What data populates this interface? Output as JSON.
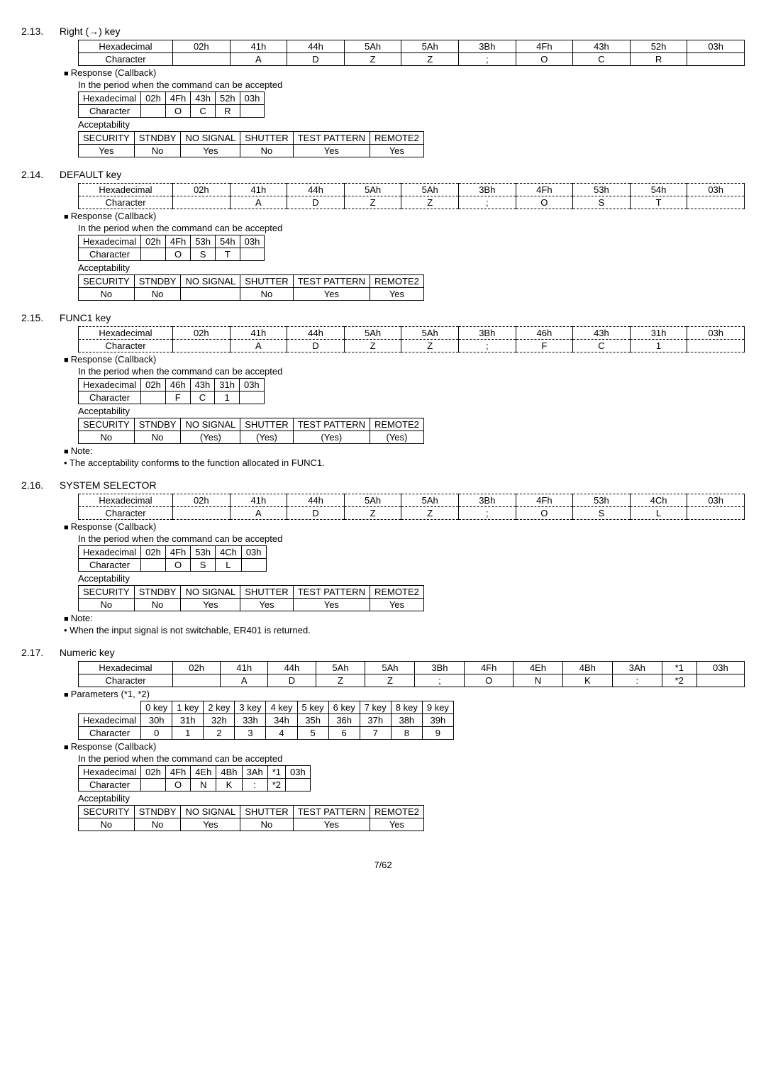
{
  "page_number": "7/62",
  "sections": {
    "s213": {
      "num": "2.13.",
      "title": "Right (→) key",
      "main": {
        "rowLabels": [
          "Hexadecimal",
          "Character"
        ],
        "hex": [
          "02h",
          "41h",
          "44h",
          "5Ah",
          "5Ah",
          "3Bh",
          "4Fh",
          "43h",
          "52h",
          "03h"
        ],
        "chr": [
          "",
          "A",
          "D",
          "Z",
          "Z",
          ";",
          "O",
          "C",
          "R",
          ""
        ]
      },
      "resp_label": "Response (Callback)",
      "resp_sub": "In the period when the command can be accepted",
      "resp": {
        "rowLabels": [
          "Hexadecimal",
          "Character"
        ],
        "hex": [
          "02h",
          "4Fh",
          "43h",
          "52h",
          "03h"
        ],
        "chr": [
          "",
          "O",
          "C",
          "R",
          ""
        ]
      },
      "acc_label": "Acceptability",
      "acc": {
        "hdr": [
          "SECURITY",
          "STNDBY",
          "NO SIGNAL",
          "SHUTTER",
          "TEST PATTERN",
          "REMOTE2"
        ],
        "val": [
          "Yes",
          "No",
          "Yes",
          "No",
          "Yes",
          "Yes"
        ]
      }
    },
    "s214": {
      "num": "2.14.",
      "title": "DEFAULT key",
      "main": {
        "rowLabels": [
          "Hexadecimal",
          "Character"
        ],
        "hex": [
          "02h",
          "41h",
          "44h",
          "5Ah",
          "5Ah",
          "3Bh",
          "4Fh",
          "53h",
          "54h",
          "03h"
        ],
        "chr": [
          "",
          "A",
          "D",
          "Z",
          "Z",
          ";",
          "O",
          "S",
          "T",
          ""
        ]
      },
      "resp_label": "Response (Callback)",
      "resp_sub": "In the period when the command can be accepted",
      "resp": {
        "rowLabels": [
          "Hexadecimal",
          "Character"
        ],
        "hex": [
          "02h",
          "4Fh",
          "53h",
          "54h",
          "03h"
        ],
        "chr": [
          "",
          "O",
          "S",
          "T",
          ""
        ]
      },
      "acc_label": "Acceptability",
      "acc": {
        "hdr": [
          "SECURITY",
          "STNDBY",
          "NO SIGNAL",
          "SHUTTER",
          "TEST PATTERN",
          "REMOTE2"
        ],
        "val": [
          "No",
          "No",
          "",
          "No",
          "Yes",
          "Yes"
        ]
      }
    },
    "s215": {
      "num": "2.15.",
      "title": "FUNC1 key",
      "main": {
        "rowLabels": [
          "Hexadecimal",
          "Character"
        ],
        "hex": [
          "02h",
          "41h",
          "44h",
          "5Ah",
          "5Ah",
          "3Bh",
          "46h",
          "43h",
          "31h",
          "03h"
        ],
        "chr": [
          "",
          "A",
          "D",
          "Z",
          "Z",
          ";",
          "F",
          "C",
          "1",
          ""
        ]
      },
      "resp_label": "Response (Callback)",
      "resp_sub": "In the period when the command can be accepted",
      "resp": {
        "rowLabels": [
          "Hexadecimal",
          "Character"
        ],
        "hex": [
          "02h",
          "46h",
          "43h",
          "31h",
          "03h"
        ],
        "chr": [
          "",
          "F",
          "C",
          "1",
          ""
        ]
      },
      "acc_label": "Acceptability",
      "acc": {
        "hdr": [
          "SECURITY",
          "STNDBY",
          "NO SIGNAL",
          "SHUTTER",
          "TEST PATTERN",
          "REMOTE2"
        ],
        "val": [
          "No",
          "No",
          "(Yes)",
          "(Yes)",
          "(Yes)",
          "(Yes)"
        ]
      },
      "note_label": "Note:",
      "note_text": "• The acceptability conforms to the function allocated in FUNC1."
    },
    "s216": {
      "num": "2.16.",
      "title": "SYSTEM SELECTOR",
      "main": {
        "rowLabels": [
          "Hexadecimal",
          "Character"
        ],
        "hex": [
          "02h",
          "41h",
          "44h",
          "5Ah",
          "5Ah",
          "3Bh",
          "4Fh",
          "53h",
          "4Ch",
          "03h"
        ],
        "chr": [
          "",
          "A",
          "D",
          "Z",
          "Z",
          ";",
          "O",
          "S",
          "L",
          ""
        ]
      },
      "resp_label": "Response (Callback)",
      "resp_sub": "In the period when the command can be accepted",
      "resp": {
        "rowLabels": [
          "Hexadecimal",
          "Character"
        ],
        "hex": [
          "02h",
          "4Fh",
          "53h",
          "4Ch",
          "03h"
        ],
        "chr": [
          "",
          "O",
          "S",
          "L",
          ""
        ]
      },
      "acc_label": "Acceptability",
      "acc": {
        "hdr": [
          "SECURITY",
          "STNDBY",
          "NO SIGNAL",
          "SHUTTER",
          "TEST PATTERN",
          "REMOTE2"
        ],
        "val": [
          "No",
          "No",
          "Yes",
          "Yes",
          "Yes",
          "Yes"
        ]
      },
      "note_label": "Note:",
      "note_text": "• When the input signal is not switchable, ER401 is returned."
    },
    "s217": {
      "num": "2.17.",
      "title": "Numeric key",
      "main": {
        "rowLabels": [
          "Hexadecimal",
          "Character"
        ],
        "hex": [
          "02h",
          "41h",
          "44h",
          "5Ah",
          "5Ah",
          "3Bh",
          "4Fh",
          "4Eh",
          "4Bh",
          "3Ah",
          "*1",
          "03h"
        ],
        "chr": [
          "",
          "A",
          "D",
          "Z",
          "Z",
          ";",
          "O",
          "N",
          "K",
          ":",
          "*2",
          ""
        ]
      },
      "param_label": "Parameters (*1, *2)",
      "param": {
        "hdr": [
          "",
          "0 key",
          "1 key",
          "2 key",
          "3 key",
          "4 key",
          "5 key",
          "6 key",
          "7 key",
          "8 key",
          "9 key"
        ],
        "hex": [
          "Hexadecimal",
          "30h",
          "31h",
          "32h",
          "33h",
          "34h",
          "35h",
          "36h",
          "37h",
          "38h",
          "39h"
        ],
        "chr": [
          "Character",
          "0",
          "1",
          "2",
          "3",
          "4",
          "5",
          "6",
          "7",
          "8",
          "9"
        ]
      },
      "resp_label": "Response (Callback)",
      "resp_sub": "In the period when the command can be accepted",
      "resp": {
        "rowLabels": [
          "Hexadecimal",
          "Character"
        ],
        "hex": [
          "02h",
          "4Fh",
          "4Eh",
          "4Bh",
          "3Ah",
          "*1",
          "03h"
        ],
        "chr": [
          "",
          "O",
          "N",
          "K",
          ":",
          "*2",
          ""
        ]
      },
      "acc_label": "Acceptability",
      "acc": {
        "hdr": [
          "SECURITY",
          "STNDBY",
          "NO SIGNAL",
          "SHUTTER",
          "TEST PATTERN",
          "REMOTE2"
        ],
        "val": [
          "No",
          "No",
          "Yes",
          "No",
          "Yes",
          "Yes"
        ]
      }
    }
  }
}
